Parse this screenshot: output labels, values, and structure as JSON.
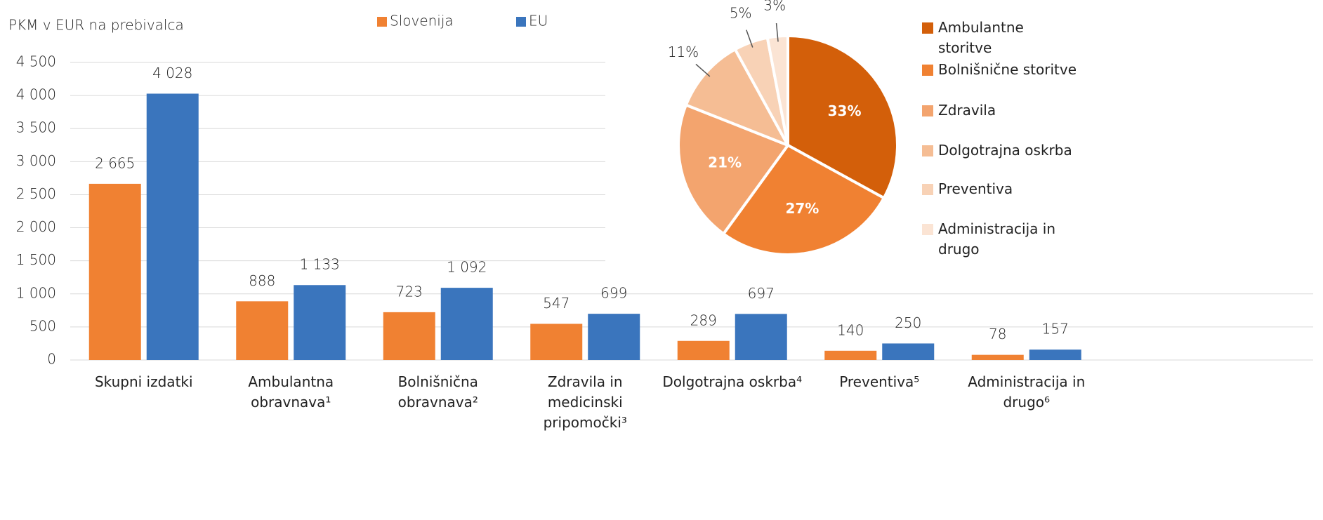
{
  "chart_data": [
    {
      "type": "bar",
      "y_label": "PKM v EUR na prebivalca",
      "categories": [
        "Skupni izdatki",
        "Ambulantna\nobravnava¹",
        "Bolnišnična\nobravnava²",
        "Zdravila in\nmedicinski\npripomočki³",
        "Dolgotrajna oskrba⁴",
        "Preventiva⁵",
        "Administracija in\ndrugo⁶"
      ],
      "series": [
        {
          "name": "Slovenija",
          "color": "#f08132",
          "values": [
            2665,
            888,
            723,
            547,
            289,
            140,
            78
          ],
          "value_labels": [
            "2 665",
            "888",
            "723",
            "547",
            "289",
            "140",
            "78"
          ]
        },
        {
          "name": "EU",
          "color": "#3a75bd",
          "values": [
            4028,
            1133,
            1092,
            699,
            697,
            250,
            157
          ],
          "value_labels": [
            "4 028",
            "1 133",
            "1 092",
            "699",
            "697",
            "250",
            "157"
          ]
        }
      ],
      "ylim": [
        0,
        4500
      ],
      "yticks": [
        0,
        500,
        {
          "value": 1000,
          "label": "1 000"
        },
        {
          "value": 1500,
          "label": "1 500"
        },
        {
          "value": 2000,
          "label": "2 000"
        },
        {
          "value": 2500,
          "label": "2 500"
        },
        {
          "value": 3000,
          "label": "3 000"
        },
        {
          "value": 3500,
          "label": "3 500"
        },
        {
          "value": 4000,
          "label": "4 000"
        },
        {
          "value": 4500,
          "label": "4 500"
        }
      ],
      "grid": true
    },
    {
      "type": "pie",
      "categories": [
        "Ambulantne\nstoritve",
        "Bolnišnične storitve",
        "Zdravila",
        "Dolgotrajna oskrba",
        "Preventiva",
        "Administracija in\ndrugo"
      ],
      "values": [
        33,
        27,
        21,
        11,
        5,
        3
      ],
      "value_labels": [
        "33%",
        "27%",
        "21%",
        "11%",
        "5%",
        "3%"
      ],
      "colors": [
        "#d35f0a",
        "#f08132",
        "#f3a46e",
        "#f5bd94",
        "#f8d2b6",
        "#fbe4d4"
      ]
    }
  ]
}
